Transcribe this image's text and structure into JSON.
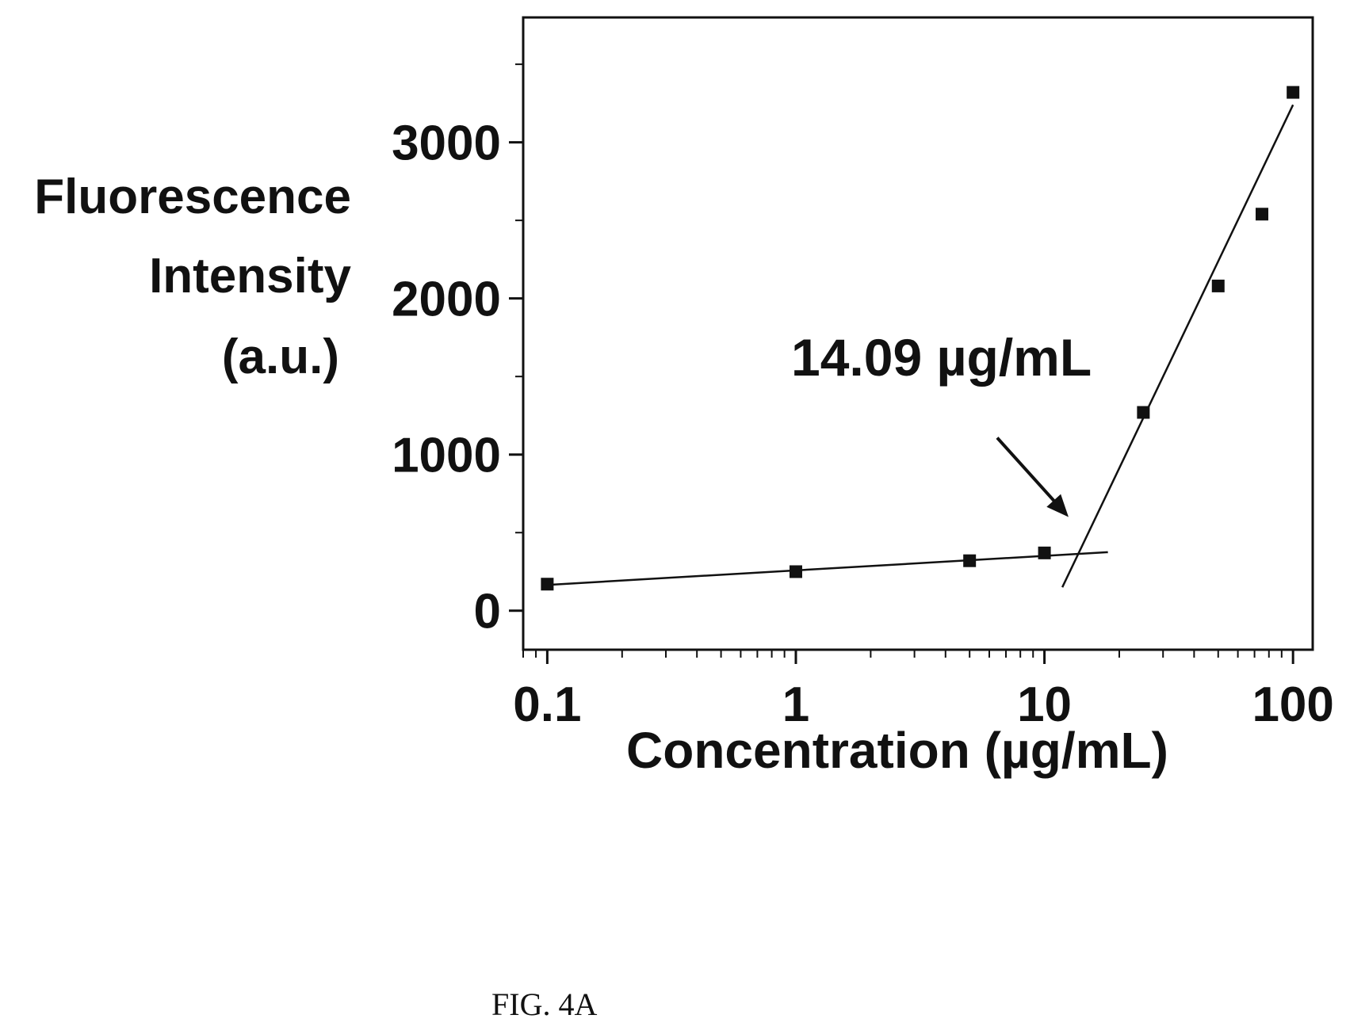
{
  "chart_data": {
    "type": "scatter",
    "title": "",
    "xlabel": "Concentration (µg/mL)",
    "ylabel_lines": [
      "Fluorescence",
      "Intensity",
      "(a.u.)"
    ],
    "x_scale": "log",
    "xlim": [
      0.08,
      120
    ],
    "ylim": [
      -250,
      3800
    ],
    "xticks": [
      {
        "value": 0.1,
        "label": "0.1"
      },
      {
        "value": 1,
        "label": "1"
      },
      {
        "value": 10,
        "label": "10"
      },
      {
        "value": 100,
        "label": "100"
      }
    ],
    "yticks": [
      {
        "value": 0,
        "label": "0"
      },
      {
        "value": 1000,
        "label": "1000"
      },
      {
        "value": 2000,
        "label": "2000"
      },
      {
        "value": 3000,
        "label": "3000"
      }
    ],
    "grid": false,
    "series": [
      {
        "points": [
          {
            "x": 0.1,
            "y": 170
          },
          {
            "x": 1,
            "y": 250
          },
          {
            "x": 5,
            "y": 320
          },
          {
            "x": 10,
            "y": 370
          },
          {
            "x": 25,
            "y": 1270
          },
          {
            "x": 50,
            "y": 2080
          },
          {
            "x": 75,
            "y": 2540
          },
          {
            "x": 100,
            "y": 3320
          }
        ]
      }
    ],
    "fit_lines": [
      {
        "x": [
          0.1,
          18
        ],
        "y": [
          165,
          375
        ]
      },
      {
        "x": [
          11.8,
          100
        ],
        "y": [
          150,
          3240
        ]
      }
    ],
    "annotation": {
      "text": "14.09 µg/mL",
      "arrow_to": {
        "x": 12.5,
        "y": 600
      }
    }
  },
  "caption": "FIG. 4A"
}
